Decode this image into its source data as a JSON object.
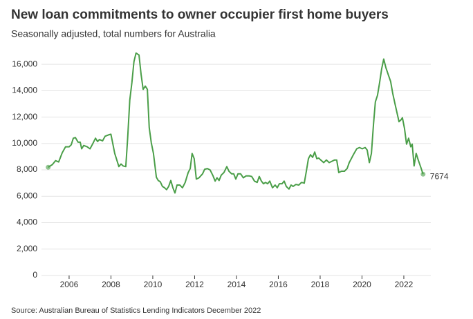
{
  "chart_data": {
    "type": "line",
    "title": "New loan commitments to owner occupier first home buyers",
    "subtitle": "Seasonally adjusted, total numbers for Australia",
    "source": "Source: Australian Bureau of Statistics Lending Indicators December 2022",
    "x": [
      2005.0,
      2005.2,
      2005.35,
      2005.5,
      2005.67,
      2005.83,
      2006.0,
      2006.1,
      2006.2,
      2006.3,
      2006.43,
      2006.53,
      2006.6,
      2006.7,
      2006.86,
      2007.0,
      2007.12,
      2007.26,
      2007.36,
      2007.45,
      2007.6,
      2007.72,
      2007.88,
      2008.0,
      2008.08,
      2008.18,
      2008.28,
      2008.38,
      2008.48,
      2008.58,
      2008.71,
      2008.8,
      2008.9,
      2009.0,
      2009.1,
      2009.2,
      2009.34,
      2009.44,
      2009.54,
      2009.64,
      2009.74,
      2009.83,
      2009.93,
      2010.03,
      2010.17,
      2010.26,
      2010.36,
      2010.46,
      2010.56,
      2010.66,
      2010.76,
      2010.86,
      2010.96,
      2011.06,
      2011.16,
      2011.29,
      2011.42,
      2011.55,
      2011.69,
      2011.79,
      2011.88,
      2011.98,
      2012.08,
      2012.21,
      2012.38,
      2012.48,
      2012.61,
      2012.74,
      2012.88,
      2012.98,
      2013.07,
      2013.17,
      2013.27,
      2013.4,
      2013.54,
      2013.64,
      2013.77,
      2013.87,
      2013.97,
      2014.07,
      2014.2,
      2014.33,
      2014.46,
      2014.6,
      2014.73,
      2014.86,
      2014.99,
      2015.09,
      2015.19,
      2015.29,
      2015.39,
      2015.49,
      2015.59,
      2015.72,
      2015.85,
      2015.95,
      2016.05,
      2016.18,
      2016.28,
      2016.38,
      2016.51,
      2016.61,
      2016.71,
      2016.84,
      2016.98,
      2017.11,
      2017.24,
      2017.34,
      2017.44,
      2017.54,
      2017.64,
      2017.74,
      2017.84,
      2017.93,
      2018.03,
      2018.17,
      2018.3,
      2018.43,
      2018.56,
      2018.69,
      2018.79,
      2018.89,
      2019.02,
      2019.16,
      2019.29,
      2019.39,
      2019.49,
      2019.62,
      2019.75,
      2019.88,
      2020.01,
      2020.15,
      2020.25,
      2020.35,
      2020.45,
      2020.55,
      2020.64,
      2020.74,
      2020.84,
      2020.94,
      2021.04,
      2021.14,
      2021.27,
      2021.37,
      2021.47,
      2021.57,
      2021.67,
      2021.77,
      2021.87,
      2021.93,
      2022.03,
      2022.13,
      2022.23,
      2022.33,
      2022.4,
      2022.49,
      2022.59,
      2022.69,
      2022.82,
      2022.92
    ],
    "series": [
      {
        "name": "First home buyers",
        "color": "#4a9e48",
        "values": [
          8200,
          8400,
          8700,
          8600,
          9300,
          9750,
          9750,
          9900,
          10400,
          10450,
          10100,
          10100,
          9600,
          9850,
          9750,
          9600,
          9950,
          10400,
          10150,
          10300,
          10200,
          10550,
          10650,
          10700,
          10050,
          9250,
          8750,
          8250,
          8450,
          8300,
          8250,
          10400,
          13300,
          14600,
          16200,
          16850,
          16700,
          15250,
          14100,
          14350,
          14100,
          11200,
          10050,
          9250,
          7450,
          7200,
          7100,
          6750,
          6650,
          6500,
          6750,
          7200,
          6650,
          6250,
          6850,
          6850,
          6650,
          7050,
          7800,
          8100,
          9250,
          8850,
          7300,
          7400,
          7700,
          8050,
          8100,
          8000,
          7550,
          7150,
          7400,
          7200,
          7600,
          7800,
          8250,
          7900,
          7700,
          7700,
          7300,
          7700,
          7700,
          7400,
          7550,
          7550,
          7500,
          7150,
          7050,
          7500,
          7150,
          6950,
          7050,
          6950,
          7150,
          6650,
          6850,
          6650,
          6950,
          6950,
          7150,
          6750,
          6550,
          6850,
          6750,
          6900,
          6850,
          7050,
          7000,
          7900,
          8850,
          9150,
          8950,
          9350,
          8850,
          8900,
          8750,
          8550,
          8750,
          8550,
          8650,
          8750,
          8750,
          7800,
          7900,
          7900,
          8100,
          8550,
          8850,
          9250,
          9600,
          9700,
          9600,
          9700,
          9500,
          8550,
          9250,
          11450,
          13150,
          13650,
          14600,
          15650,
          16400,
          15750,
          15150,
          14700,
          13800,
          13050,
          12350,
          11650,
          11800,
          11950,
          11150,
          9950,
          10400,
          9750,
          9950,
          8300,
          9250,
          8750,
          8150,
          7674
        ]
      }
    ],
    "xlim": [
      2004.68,
      2023.29
    ],
    "xticks": [
      2006,
      2008,
      2010,
      2012,
      2014,
      2016,
      2018,
      2020,
      2022
    ],
    "ylim": [
      0,
      17000
    ],
    "yticks": [
      0,
      {
        "value": 2000,
        "label": "2,000"
      },
      {
        "value": 4000,
        "label": "4,000"
      },
      {
        "value": 6000,
        "label": "6,000"
      },
      {
        "value": 8000,
        "label": "8,000"
      },
      {
        "value": 10000,
        "label": "10,000"
      },
      {
        "value": 12000,
        "label": "12,000"
      },
      {
        "value": 14000,
        "label": "14,000"
      },
      {
        "value": 16000,
        "label": "16,000"
      }
    ],
    "grid": true
  }
}
